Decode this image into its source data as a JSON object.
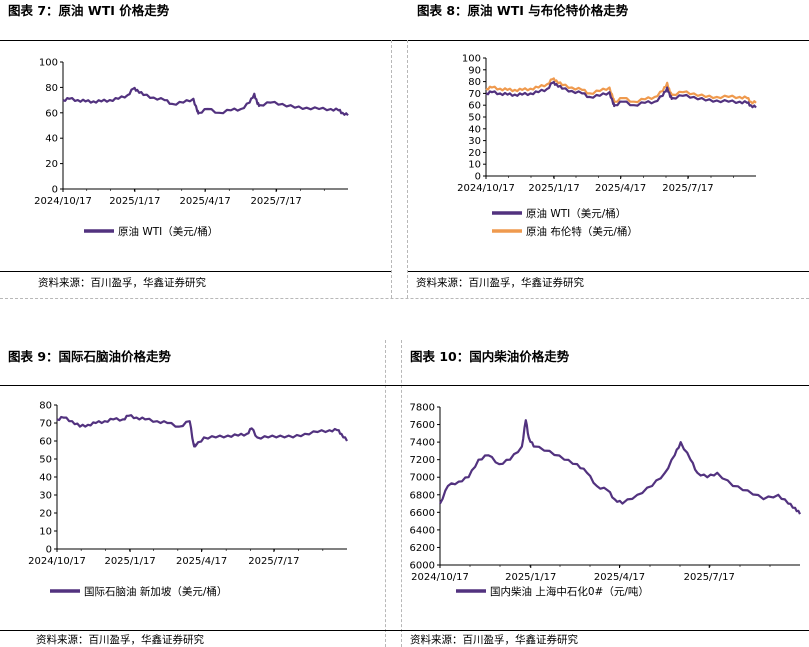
{
  "panels": [
    {
      "title": "图表 7：原油 WTI 价格走势",
      "source": "资料来源：百川盈孚，华鑫证券研究"
    },
    {
      "title": "图表 8：原油 WTI 与布伦特价格走势",
      "source": "资料来源：百川盈孚，华鑫证券研究"
    },
    {
      "title": "图表 9：国际石脑油价格走势",
      "source": "资料来源：百川盈孚，华鑫证券研究"
    },
    {
      "title": "图表 10：国内柴油价格走势",
      "source": "资料来源：百川盈孚，华鑫证券研究"
    }
  ],
  "colors": {
    "purple": "#52327f",
    "orange": "#ef9a4e",
    "axis": "#000000"
  },
  "chart_data": [
    {
      "type": "line",
      "ylim": [
        0,
        100
      ],
      "yticks": [
        "0",
        "20",
        "40",
        "60",
        "80",
        "100"
      ],
      "xticks": [
        "2024/10/17",
        "2025/1/17",
        "2025/4/17",
        "2025/7/17"
      ],
      "x_range": [
        "2024/10/17",
        "2025/10/17"
      ],
      "series": [
        {
          "name": "原油 WTI（美元/桶）",
          "x": [
            "2024/10/17",
            "2024/10/25",
            "2024/11/5",
            "2024/11/15",
            "2024/11/25",
            "2024/12/5",
            "2024/12/16",
            "2024/12/27",
            "2025/1/8",
            "2025/1/15",
            "2025/1/20",
            "2025/1/28",
            "2025/2/10",
            "2025/2/24",
            "2025/3/6",
            "2025/3/20",
            "2025/4/2",
            "2025/4/7",
            "2025/4/9",
            "2025/4/20",
            "2025/5/5",
            "2025/5/20",
            "2025/6/2",
            "2025/6/13",
            "2025/6/19",
            "2025/6/23",
            "2025/6/26",
            "2025/7/10",
            "2025/7/25",
            "2025/8/10",
            "2025/8/25",
            "2025/9/10",
            "2025/9/25",
            "2025/10/5",
            "2025/10/10",
            "2025/10/17"
          ],
          "values": [
            70,
            71,
            70,
            69,
            69,
            69,
            70,
            71,
            74,
            79,
            78,
            74,
            72,
            70,
            67,
            68,
            71,
            61,
            60,
            63,
            60,
            62,
            63,
            68,
            75,
            67,
            66,
            68,
            67,
            64,
            64,
            63,
            63,
            62,
            60,
            58
          ]
        }
      ]
    },
    {
      "type": "line",
      "ylim": [
        0,
        100
      ],
      "yticks": [
        "0",
        "10",
        "20",
        "30",
        "40",
        "50",
        "60",
        "70",
        "80",
        "90",
        "100"
      ],
      "xticks": [
        "2024/10/17",
        "2025/1/17",
        "2025/4/17",
        "2025/7/17"
      ],
      "x_range": [
        "2024/10/17",
        "2025/10/17"
      ],
      "series": [
        {
          "name": "原油 WTI（美元/桶）",
          "x": [
            "2024/10/17",
            "2024/10/25",
            "2024/11/5",
            "2024/11/15",
            "2024/11/25",
            "2024/12/5",
            "2024/12/16",
            "2024/12/27",
            "2025/1/8",
            "2025/1/15",
            "2025/1/20",
            "2025/1/28",
            "2025/2/10",
            "2025/2/24",
            "2025/3/6",
            "2025/3/20",
            "2025/4/2",
            "2025/4/7",
            "2025/4/9",
            "2025/4/20",
            "2025/5/5",
            "2025/5/20",
            "2025/6/2",
            "2025/6/13",
            "2025/6/19",
            "2025/6/23",
            "2025/6/26",
            "2025/7/10",
            "2025/7/25",
            "2025/8/10",
            "2025/8/25",
            "2025/9/10",
            "2025/9/25",
            "2025/10/5",
            "2025/10/10",
            "2025/10/17"
          ],
          "values": [
            70,
            71,
            70,
            69,
            69,
            69,
            70,
            71,
            74,
            79,
            78,
            74,
            72,
            70,
            67,
            68,
            71,
            61,
            60,
            63,
            60,
            62,
            63,
            68,
            75,
            67,
            66,
            68,
            67,
            64,
            64,
            63,
            63,
            62,
            60,
            58
          ]
        },
        {
          "name": "原油 布伦特（美元/桶）",
          "x": [
            "2024/10/17",
            "2024/10/25",
            "2024/11/5",
            "2024/11/15",
            "2024/11/25",
            "2024/12/5",
            "2024/12/16",
            "2024/12/27",
            "2025/1/8",
            "2025/1/15",
            "2025/1/20",
            "2025/1/28",
            "2025/2/10",
            "2025/2/24",
            "2025/3/6",
            "2025/3/20",
            "2025/4/2",
            "2025/4/7",
            "2025/4/9",
            "2025/4/20",
            "2025/5/5",
            "2025/5/20",
            "2025/6/2",
            "2025/6/13",
            "2025/6/19",
            "2025/6/23",
            "2025/6/26",
            "2025/7/10",
            "2025/7/25",
            "2025/8/10",
            "2025/8/25",
            "2025/9/10",
            "2025/9/25",
            "2025/10/5",
            "2025/10/10",
            "2025/10/17"
          ],
          "values": [
            74,
            75,
            74,
            73,
            73,
            73,
            74,
            75,
            78,
            82,
            81,
            77,
            75,
            73,
            70,
            72,
            75,
            65,
            63,
            66,
            63,
            65,
            67,
            72,
            79,
            70,
            69,
            71,
            70,
            67,
            67,
            67,
            67,
            66,
            63,
            62
          ]
        }
      ]
    },
    {
      "type": "line",
      "ylim": [
        0,
        80
      ],
      "yticks": [
        "0",
        "10",
        "20",
        "30",
        "40",
        "50",
        "60",
        "70",
        "80"
      ],
      "xticks": [
        "2024/10/17",
        "2025/1/17",
        "2025/4/17",
        "2025/7/17"
      ],
      "x_range": [
        "2024/10/17",
        "2025/10/17"
      ],
      "series": [
        {
          "name": "国际石脑油 新加坡（美元/桶）",
          "x": [
            "2024/10/17",
            "2024/10/25",
            "2024/11/5",
            "2024/11/15",
            "2024/11/25",
            "2024/12/5",
            "2024/12/16",
            "2024/12/27",
            "2025/1/8",
            "2025/1/15",
            "2025/1/25",
            "2025/2/5",
            "2025/2/20",
            "2025/3/5",
            "2025/3/20",
            "2025/4/2",
            "2025/4/7",
            "2025/4/9",
            "2025/4/20",
            "2025/5/5",
            "2025/5/20",
            "2025/6/2",
            "2025/6/13",
            "2025/6/19",
            "2025/6/26",
            "2025/7/10",
            "2025/7/25",
            "2025/8/10",
            "2025/8/25",
            "2025/9/10",
            "2025/9/25",
            "2025/10/5",
            "2025/10/10",
            "2025/10/17"
          ],
          "values": [
            72,
            73,
            71,
            68,
            69,
            70,
            71,
            72,
            72,
            74,
            73,
            72,
            71,
            70,
            68,
            71,
            58,
            57,
            62,
            62,
            63,
            63,
            64,
            67,
            62,
            62,
            63,
            62,
            64,
            65,
            66,
            66,
            64,
            60
          ]
        }
      ]
    },
    {
      "type": "line",
      "ylim": [
        6000,
        7800
      ],
      "yticks": [
        "6000",
        "6200",
        "6400",
        "6600",
        "6800",
        "7000",
        "7200",
        "7400",
        "7600",
        "7800"
      ],
      "xticks": [
        "2024/10/17",
        "2025/1/17",
        "2025/4/17",
        "2025/7/17"
      ],
      "x_range": [
        "2024/10/17",
        "2025/10/17"
      ],
      "series": [
        {
          "name": "国内柴油 上海中石化0#（元/吨）",
          "x": [
            "2024/10/17",
            "2024/10/25",
            "2024/11/5",
            "2024/11/15",
            "2024/11/25",
            "2024/12/5",
            "2024/12/16",
            "2024/12/27",
            "2025/1/8",
            "2025/1/12",
            "2025/1/15",
            "2025/1/20",
            "2025/2/5",
            "2025/2/20",
            "2025/3/5",
            "2025/3/15",
            "2025/3/25",
            "2025/4/5",
            "2025/4/12",
            "2025/4/20",
            "2025/5/5",
            "2025/5/20",
            "2025/6/2",
            "2025/6/12",
            "2025/6/18",
            "2025/6/28",
            "2025/7/5",
            "2025/7/15",
            "2025/7/25",
            "2025/8/10",
            "2025/8/25",
            "2025/9/10",
            "2025/9/25",
            "2025/10/5",
            "2025/10/12",
            "2025/10/17"
          ],
          "values": [
            6700,
            6900,
            6950,
            7000,
            7200,
            7250,
            7150,
            7200,
            7350,
            7650,
            7450,
            7350,
            7300,
            7200,
            7150,
            7050,
            6900,
            6850,
            6750,
            6700,
            6800,
            6900,
            7050,
            7250,
            7400,
            7200,
            7050,
            7000,
            7050,
            6900,
            6850,
            6750,
            6800,
            6700,
            6650,
            6580
          ]
        }
      ]
    }
  ]
}
